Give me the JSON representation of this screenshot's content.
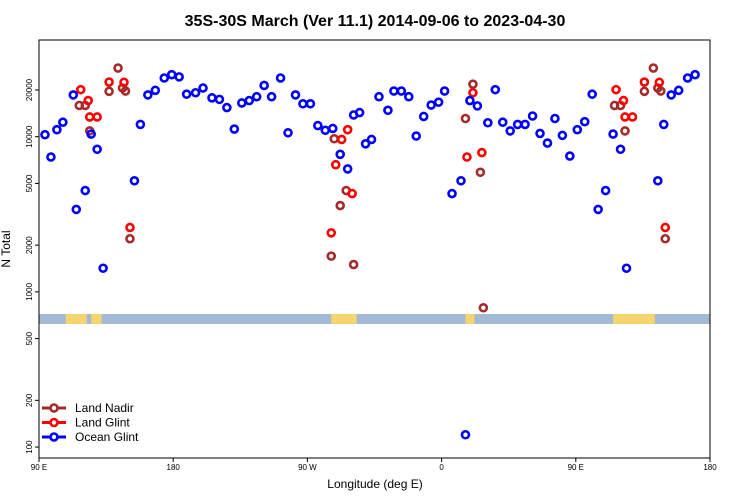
{
  "chart_data": {
    "type": "scatter",
    "title": "35S-30S March (Ver 11.1)   2014-09-06 to 2023-04-30",
    "xlabel": "Longitude (deg E)",
    "ylabel": "N Total",
    "x_scale": "linear",
    "y_scale": "log",
    "x_axis": {
      "ticks": [
        90,
        180,
        270,
        360,
        450,
        540
      ],
      "tick_labels": [
        "90 E",
        "180",
        "90 W",
        "0",
        "90 E",
        "180"
      ]
    },
    "y_axis": {
      "ticks": [
        100,
        200,
        500,
        1000,
        2000,
        5000,
        10000,
        20000
      ],
      "tick_labels": [
        "100",
        "200",
        "500",
        "1000",
        "2000",
        "5000",
        "10000",
        "20000"
      ]
    },
    "legend": {
      "placement": "bottom-left",
      "entries": [
        "Land Nadir",
        "Land Glint",
        "Ocean Glint"
      ]
    },
    "colors": {
      "land_nadir": "#a52a2a",
      "land_glint": "#ff0000",
      "ocean_glint": "#0000ff",
      "land_band": "#f6d56f",
      "ocean_band": "#a3b9d6"
    },
    "series": [
      {
        "name": "Land Nadir",
        "points": [
          [
            117,
            15900
          ],
          [
            121,
            15900
          ],
          [
            124,
            10900
          ],
          [
            137,
            19600
          ],
          [
            143,
            27700
          ],
          [
            146,
            20600
          ],
          [
            148,
            19700
          ],
          [
            151,
            2200
          ],
          [
            286,
            1700
          ],
          [
            288,
            9700
          ],
          [
            292,
            3600
          ],
          [
            296,
            4500
          ],
          [
            301,
            1500
          ],
          [
            376,
            13100
          ],
          [
            381,
            21800
          ],
          [
            386,
            5900
          ],
          [
            388,
            790
          ],
          [
            476,
            15900
          ],
          [
            480,
            15900
          ],
          [
            483,
            10900
          ],
          [
            496,
            19600
          ],
          [
            502,
            27700
          ],
          [
            505,
            20600
          ],
          [
            507,
            19700
          ],
          [
            510,
            2200
          ]
        ]
      },
      {
        "name": "Land Glint",
        "points": [
          [
            118,
            20100
          ],
          [
            123,
            17100
          ],
          [
            124,
            13400
          ],
          [
            129,
            13400
          ],
          [
            137,
            22500
          ],
          [
            147,
            22400
          ],
          [
            151,
            2600
          ],
          [
            286,
            2400
          ],
          [
            289,
            6600
          ],
          [
            293,
            9600
          ],
          [
            297,
            11100
          ],
          [
            300,
            4300
          ],
          [
            377,
            7400
          ],
          [
            381,
            19200
          ],
          [
            387,
            7900
          ],
          [
            477,
            20100
          ],
          [
            482,
            17100
          ],
          [
            483,
            13400
          ],
          [
            488,
            13400
          ],
          [
            496,
            22500
          ],
          [
            506,
            22400
          ],
          [
            510,
            2600
          ]
        ]
      },
      {
        "name": "Ocean Glint",
        "points": [
          [
            94,
            10300
          ],
          [
            98,
            7400
          ],
          [
            102,
            11100
          ],
          [
            106,
            12400
          ],
          [
            113,
            18600
          ],
          [
            115,
            3400
          ],
          [
            121,
            4500
          ],
          [
            125,
            10400
          ],
          [
            129,
            8300
          ],
          [
            133,
            1420
          ],
          [
            154,
            5200
          ],
          [
            158,
            12000
          ],
          [
            163,
            18600
          ],
          [
            168,
            19900
          ],
          [
            174,
            23900
          ],
          [
            179,
            25100
          ],
          [
            184,
            24300
          ],
          [
            189,
            18800
          ],
          [
            195,
            19200
          ],
          [
            200,
            20600
          ],
          [
            206,
            17800
          ],
          [
            211,
            17400
          ],
          [
            216,
            15400
          ],
          [
            221,
            11200
          ],
          [
            226,
            16500
          ],
          [
            231,
            17100
          ],
          [
            236,
            18100
          ],
          [
            241,
            21400
          ],
          [
            246,
            18100
          ],
          [
            252,
            23900
          ],
          [
            257,
            10600
          ],
          [
            262,
            18600
          ],
          [
            267,
            16300
          ],
          [
            272,
            16300
          ],
          [
            277,
            11800
          ],
          [
            282,
            11000
          ],
          [
            287,
            11300
          ],
          [
            292,
            7700
          ],
          [
            297,
            6200
          ],
          [
            301,
            13800
          ],
          [
            305,
            14300
          ],
          [
            309,
            9000
          ],
          [
            313,
            9600
          ],
          [
            318,
            18100
          ],
          [
            324,
            14800
          ],
          [
            328,
            19700
          ],
          [
            333,
            19700
          ],
          [
            338,
            18100
          ],
          [
            343,
            10100
          ],
          [
            348,
            13500
          ],
          [
            353,
            16000
          ],
          [
            358,
            16700
          ],
          [
            362,
            19700
          ],
          [
            367,
            4300
          ],
          [
            373,
            5200
          ],
          [
            376,
            120
          ],
          [
            379,
            17100
          ],
          [
            384,
            15800
          ],
          [
            391,
            12300
          ],
          [
            396,
            20100
          ],
          [
            401,
            12400
          ],
          [
            406,
            10900
          ],
          [
            411,
            12000
          ],
          [
            416,
            12000
          ],
          [
            421,
            13600
          ],
          [
            426,
            10500
          ],
          [
            431,
            9100
          ],
          [
            436,
            13100
          ],
          [
            441,
            10200
          ],
          [
            446,
            7500
          ],
          [
            451,
            11100
          ],
          [
            456,
            12500
          ],
          [
            461,
            18800
          ],
          [
            465,
            3400
          ],
          [
            470,
            4500
          ],
          [
            475,
            10400
          ],
          [
            480,
            8300
          ],
          [
            484,
            1420
          ],
          [
            505,
            5200
          ],
          [
            509,
            12000
          ],
          [
            514,
            18600
          ],
          [
            519,
            19900
          ],
          [
            525,
            23900
          ],
          [
            530,
            25100
          ]
        ]
      }
    ]
  }
}
